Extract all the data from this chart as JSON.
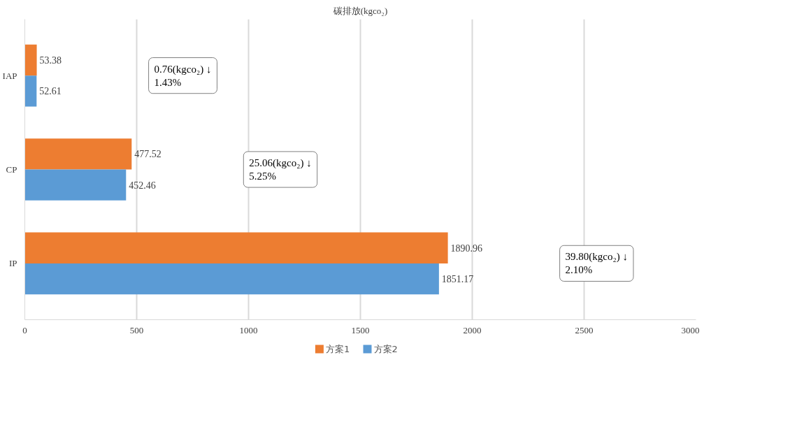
{
  "chart_data": {
    "type": "bar",
    "orientation": "horizontal",
    "title": "碳排放(kgco₂)",
    "categories": [
      "IAP",
      "CP",
      "IP"
    ],
    "series": [
      {
        "name": "方案1",
        "color": "#ed7d31",
        "values": [
          53.38,
          477.52,
          1890.96
        ]
      },
      {
        "name": "方案2",
        "color": "#5b9bd5",
        "values": [
          52.61,
          452.46,
          1851.17
        ]
      }
    ],
    "xlim": [
      0,
      3000
    ],
    "xticks": [
      0,
      500,
      1000,
      1500,
      2000,
      2500,
      3000
    ],
    "grid": "x",
    "legend": "bottom",
    "data_labels": true,
    "annotations": [
      "0.76(kgco₂) ↓\n1.43%",
      "25.06(kgco₂) ↓\n5.25%",
      "39.80(kgco₂) ↓\n2.10%"
    ]
  }
}
